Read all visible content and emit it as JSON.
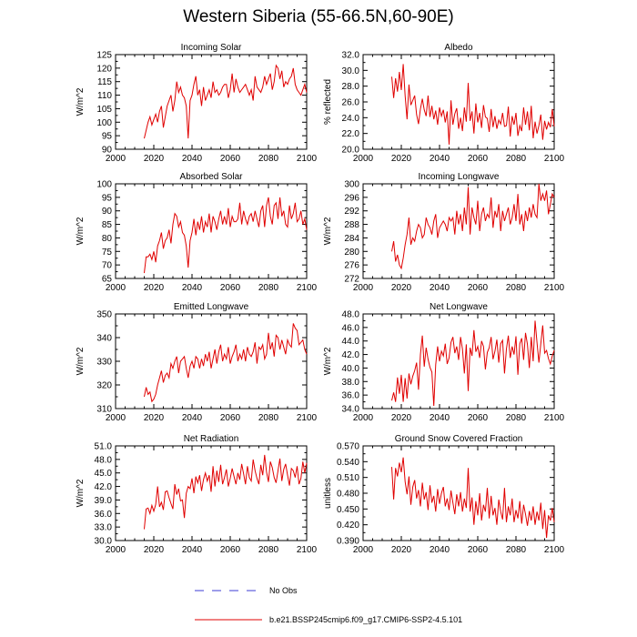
{
  "title": "Western Siberia (55-66.5N,60-90E)",
  "legend": {
    "obs_label": "No Obs",
    "model_label": "b.e21.BSSP245cmip6.f09_g17.CMIP6-SSP2-4.5.101",
    "obs_color": "#3b3bd6",
    "model_color": "#e00000"
  },
  "chart_data": [
    {
      "type": "line",
      "title": "Incoming Solar",
      "ylabel": "W/m^2",
      "xlabel": "",
      "xlim": [
        2000,
        2100
      ],
      "xticks": [
        "2000",
        "2020",
        "2040",
        "2060",
        "2080",
        "2100"
      ],
      "ylim": [
        90,
        125
      ],
      "yticks": [
        "90",
        "95",
        "100",
        "105",
        "110",
        "115",
        "120",
        "125"
      ],
      "series": [
        {
          "name": "b.e21.BSSP245cmip6.f09_g17.CMIP6-SSP2-4.5.101",
          "x_start": 2015,
          "x_end": 2100,
          "values": [
            94,
            97,
            100,
            102,
            99,
            101,
            103,
            100,
            104,
            106,
            98,
            102,
            106,
            108,
            110,
            104,
            108,
            115,
            111,
            113,
            110,
            109,
            106,
            94,
            108,
            110,
            114,
            117,
            110,
            112,
            106,
            113,
            108,
            110,
            112,
            109,
            115,
            111,
            112,
            110,
            111,
            113,
            114,
            114,
            109,
            112,
            118,
            111,
            116,
            113,
            111,
            112,
            113,
            114,
            112,
            110,
            112,
            108,
            117,
            113,
            112,
            111,
            113,
            117,
            114,
            116,
            118,
            112,
            115,
            121,
            120,
            116,
            119,
            113,
            115,
            114,
            116,
            117,
            120,
            114,
            112,
            111,
            110,
            112,
            114,
            111
          ]
        }
      ]
    },
    {
      "type": "line",
      "title": "Albedo",
      "ylabel": "% reflected",
      "xlabel": "",
      "xlim": [
        2000,
        2100
      ],
      "xticks": [
        "2000",
        "2020",
        "2040",
        "2060",
        "2080",
        "2100"
      ],
      "ylim": [
        20,
        32
      ],
      "yticks": [
        "20.0",
        "22.0",
        "24.0",
        "26.0",
        "28.0",
        "30.0",
        "32.0"
      ],
      "series": [
        {
          "name": "b.e21.BSSP245cmip6.f09_g17.CMIP6-SSP2-4.5.101",
          "x_start": 2015,
          "x_end": 2100,
          "values": [
            29.2,
            26.5,
            29.0,
            27.3,
            29.8,
            27.5,
            30.8,
            26.8,
            23.8,
            28.2,
            25.6,
            26.2,
            26.8,
            24.4,
            23.2,
            25.1,
            26.4,
            25.0,
            24.2,
            26.8,
            24.1,
            25.5,
            23.8,
            24.9,
            23.1,
            25.3,
            24.2,
            25.0,
            23.4,
            24.8,
            20.6,
            26.2,
            23.1,
            24.5,
            25.2,
            22.6,
            24.0,
            22.3,
            25.3,
            23.5,
            28.4,
            23.6,
            24.8,
            22.0,
            25.8,
            23.4,
            24.6,
            22.7,
            25.6,
            24.1,
            23.9,
            22.2,
            25.1,
            22.8,
            24.2,
            22.6,
            23.7,
            23.2,
            24.6,
            22.9,
            23.0,
            25.4,
            21.6,
            24.2,
            23.1,
            24.6,
            21.7,
            23.0,
            22.3,
            25.3,
            23.1,
            24.8,
            22.4,
            25.5,
            21.4,
            23.5,
            22.0,
            23.0,
            24.4,
            21.2,
            23.6,
            22.5,
            23.4,
            22.8,
            25.1,
            22.9
          ]
        }
      ]
    },
    {
      "type": "line",
      "title": "Absorbed Solar",
      "ylabel": "W/m^2",
      "xlabel": "",
      "xlim": [
        2000,
        2100
      ],
      "xticks": [
        "2000",
        "2020",
        "2040",
        "2060",
        "2080",
        "2100"
      ],
      "ylim": [
        65,
        100
      ],
      "yticks": [
        "65",
        "70",
        "75",
        "80",
        "85",
        "90",
        "95",
        "100"
      ],
      "series": [
        {
          "name": "b.e21.BSSP245cmip6.f09_g17.CMIP6-SSP2-4.5.101",
          "x_start": 2015,
          "x_end": 2100,
          "values": [
            67,
            73,
            73,
            74,
            72,
            75,
            71,
            77,
            79,
            82,
            76,
            79,
            80,
            83,
            78,
            85,
            89,
            88,
            84,
            86,
            82,
            81,
            77,
            69,
            79,
            82,
            87,
            81,
            86,
            83,
            88,
            82,
            86,
            84,
            89,
            82,
            88,
            86,
            83,
            87,
            90,
            85,
            88,
            85,
            91,
            84,
            88,
            86,
            86,
            87,
            93,
            85,
            90,
            87,
            85,
            88,
            89,
            86,
            90,
            87,
            84,
            90,
            92,
            84,
            92,
            95,
            88,
            85,
            92,
            93,
            87,
            95,
            88,
            90,
            85,
            84,
            92,
            87,
            89,
            93,
            86,
            87,
            90,
            85,
            87,
            83
          ]
        }
      ]
    },
    {
      "type": "line",
      "title": "Incoming Longwave",
      "ylabel": "W/m^2",
      "xlabel": "",
      "xlim": [
        2000,
        2100
      ],
      "xticks": [
        "2000",
        "2020",
        "2040",
        "2060",
        "2080",
        "2100"
      ],
      "ylim": [
        272,
        300
      ],
      "yticks": [
        "272",
        "276",
        "280",
        "284",
        "288",
        "292",
        "296",
        "300"
      ],
      "series": [
        {
          "name": "b.e21.BSSP245cmip6.f09_g17.CMIP6-SSP2-4.5.101",
          "x_start": 2015,
          "x_end": 2100,
          "values": [
            280,
            283,
            277,
            279,
            276,
            275,
            278,
            282,
            285,
            290,
            282,
            284,
            283,
            286,
            288,
            287,
            284,
            285,
            290,
            288,
            287,
            285,
            289,
            291,
            284,
            287,
            288,
            289,
            288,
            286,
            290,
            289,
            290,
            285,
            292,
            288,
            291,
            286,
            293,
            288,
            299,
            285,
            293,
            290,
            288,
            295,
            286,
            291,
            293,
            289,
            291,
            290,
            296,
            287,
            292,
            290,
            294,
            286,
            292,
            289,
            291,
            293,
            288,
            290,
            294,
            289,
            297,
            288,
            291,
            286,
            292,
            289,
            293,
            290,
            294,
            291,
            290,
            300,
            295,
            297,
            295,
            298,
            291,
            294,
            297,
            296
          ]
        }
      ]
    },
    {
      "type": "line",
      "title": "Emitted Longwave",
      "ylabel": "W/m^2",
      "xlabel": "",
      "xlim": [
        2000,
        2100
      ],
      "xticks": [
        "2000",
        "2020",
        "2040",
        "2060",
        "2080",
        "2100"
      ],
      "ylim": [
        310,
        350
      ],
      "yticks": [
        "310",
        "320",
        "330",
        "340",
        "350"
      ],
      "series": [
        {
          "name": "b.e21.BSSP245cmip6.f09_g17.CMIP6-SSP2-4.5.101",
          "x_start": 2015,
          "x_end": 2100,
          "values": [
            315,
            319,
            316,
            317,
            313,
            314,
            316,
            320,
            323,
            326,
            321,
            324,
            325,
            323,
            329,
            327,
            330,
            332,
            325,
            330,
            331,
            332,
            327,
            323,
            328,
            330,
            327,
            332,
            331,
            327,
            331,
            328,
            333,
            330,
            334,
            327,
            331,
            335,
            329,
            334,
            337,
            330,
            333,
            331,
            336,
            329,
            332,
            334,
            337,
            330,
            333,
            331,
            335,
            330,
            336,
            333,
            332,
            334,
            338,
            329,
            336,
            335,
            337,
            331,
            333,
            342,
            335,
            338,
            332,
            341,
            340,
            335,
            339,
            336,
            333,
            339,
            337,
            336,
            346,
            344,
            343,
            337,
            338,
            339,
            335,
            333
          ]
        }
      ]
    },
    {
      "type": "line",
      "title": "Net Longwave",
      "ylabel": "W/m^2",
      "xlabel": "",
      "xlim": [
        2000,
        2100
      ],
      "xticks": [
        "2000",
        "2020",
        "2040",
        "2060",
        "2080",
        "2100"
      ],
      "ylim": [
        34,
        48
      ],
      "yticks": [
        "34.0",
        "36.0",
        "38.0",
        "40.0",
        "42.0",
        "44.0",
        "46.0",
        "48.0"
      ],
      "series": [
        {
          "name": "b.e21.BSSP245cmip6.f09_g17.CMIP6-SSP2-4.5.101",
          "x_start": 2015,
          "x_end": 2100,
          "values": [
            35.2,
            36.4,
            35.0,
            38.6,
            36.2,
            39.0,
            35.0,
            38.5,
            35.5,
            39.2,
            37.6,
            38.8,
            39.6,
            40.8,
            36.8,
            42.0,
            44.8,
            40.2,
            43.0,
            41.3,
            40.1,
            39.4,
            34.4,
            40.5,
            43.2,
            41.0,
            42.5,
            41.8,
            43.6,
            40.6,
            41.5,
            43.8,
            44.6,
            42.2,
            43.2,
            41.2,
            44.6,
            42.8,
            39.2,
            43.5,
            36.6,
            43.0,
            41.8,
            45.6,
            42.4,
            43.2,
            41.5,
            44.0,
            43.2,
            39.8,
            42.3,
            43.0,
            44.6,
            41.3,
            42.5,
            44.2,
            40.8,
            43.6,
            44.1,
            39.2,
            42.8,
            44.8,
            41.5,
            43.2,
            42.0,
            44.7,
            39.0,
            43.6,
            44.4,
            41.2,
            45.2,
            43.5,
            40.0,
            44.6,
            41.0,
            47.0,
            43.8,
            40.8,
            43.6,
            46.3,
            42.2,
            42.6,
            41.4,
            40.6,
            41.8,
            42.6
          ]
        }
      ]
    },
    {
      "type": "line",
      "title": "Net Radiation",
      "ylabel": "W/m^2",
      "xlabel": "",
      "xlim": [
        2000,
        2100
      ],
      "xticks": [
        "2000",
        "2020",
        "2040",
        "2060",
        "2080",
        "2100"
      ],
      "ylim": [
        30,
        51
      ],
      "yticks": [
        "30.0",
        "33.0",
        "36.0",
        "39.0",
        "42.0",
        "45.0",
        "48.0",
        "51.0"
      ],
      "series": [
        {
          "name": "b.e21.BSSP245cmip6.f09_g17.CMIP6-SSP2-4.5.101",
          "x_start": 2015,
          "x_end": 2100,
          "values": [
            32.5,
            37.0,
            37.2,
            36.0,
            37.8,
            36.5,
            38.0,
            42.0,
            37.5,
            38.5,
            36.8,
            40.8,
            41.0,
            39.5,
            38.2,
            37.0,
            42.5,
            40.2,
            41.5,
            38.8,
            39.0,
            35.0,
            40.5,
            42.0,
            41.5,
            43.8,
            40.5,
            44.2,
            42.8,
            44.5,
            41.0,
            43.5,
            45.0,
            43.2,
            44.5,
            40.8,
            46.5,
            42.0,
            45.5,
            43.0,
            46.8,
            42.5,
            44.0,
            45.8,
            42.0,
            43.8,
            46.0,
            44.2,
            42.5,
            45.0,
            43.5,
            47.0,
            44.8,
            42.5,
            46.5,
            44.0,
            43.2,
            48.0,
            45.5,
            43.8,
            42.5,
            46.8,
            44.5,
            49.0,
            45.2,
            43.0,
            47.5,
            46.2,
            44.0,
            42.8,
            45.5,
            48.2,
            43.2,
            45.8,
            47.0,
            44.5,
            42.2,
            46.0,
            45.5,
            44.0,
            46.5,
            42.5,
            43.8,
            47.5,
            45.0,
            47.2
          ]
        }
      ]
    },
    {
      "type": "line",
      "title": "Ground Snow Covered Fraction",
      "ylabel": "unitless",
      "xlabel": "",
      "xlim": [
        2000,
        2100
      ],
      "xticks": [
        "2000",
        "2020",
        "2040",
        "2060",
        "2080",
        "2100"
      ],
      "ylim": [
        0.39,
        0.57
      ],
      "yticks": [
        "0.390",
        "0.420",
        "0.450",
        "0.480",
        "0.510",
        "0.540",
        "0.570"
      ],
      "series": [
        {
          "name": "b.e21.BSSP245cmip6.f09_g17.CMIP6-SSP2-4.5.101",
          "x_start": 2015,
          "x_end": 2100,
          "values": [
            0.53,
            0.468,
            0.528,
            0.512,
            0.538,
            0.52,
            0.548,
            0.502,
            0.478,
            0.512,
            0.458,
            0.492,
            0.505,
            0.47,
            0.486,
            0.455,
            0.5,
            0.468,
            0.482,
            0.448,
            0.495,
            0.462,
            0.475,
            0.445,
            0.488,
            0.46,
            0.48,
            0.492,
            0.455,
            0.47,
            0.448,
            0.485,
            0.462,
            0.44,
            0.478,
            0.455,
            0.482,
            0.445,
            0.47,
            0.452,
            0.528,
            0.445,
            0.472,
            0.42,
            0.465,
            0.438,
            0.48,
            0.428,
            0.458,
            0.445,
            0.49,
            0.432,
            0.475,
            0.438,
            0.452,
            0.42,
            0.468,
            0.445,
            0.43,
            0.49,
            0.425,
            0.455,
            0.438,
            0.47,
            0.425,
            0.448,
            0.432,
            0.465,
            0.422,
            0.458,
            0.44,
            0.418,
            0.446,
            0.428,
            0.455,
            0.42,
            0.445,
            0.428,
            0.462,
            0.412,
            0.448,
            0.395,
            0.438,
            0.428,
            0.452,
            0.425
          ]
        }
      ]
    }
  ]
}
